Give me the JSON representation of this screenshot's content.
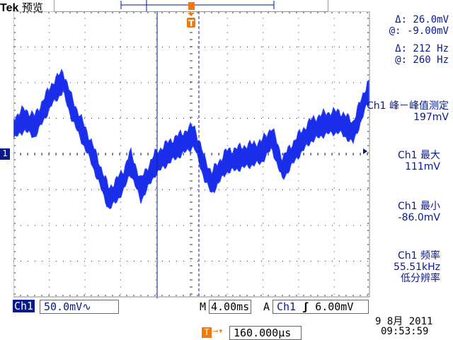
{
  "header": {
    "brand": "Tek",
    "mode": "预览"
  },
  "cursors": {
    "delta_v": "Δ:  26.0mV",
    "at_v": "@: -9.00mV",
    "delta_f": "Δ:   212 Hz",
    "at_f": "@:   260 Hz"
  },
  "measurements": [
    {
      "label": "Ch1 峰－峰值测定",
      "value": "197mV"
    },
    {
      "label": "Ch1 最大",
      "value": "111mV"
    },
    {
      "label": "Ch1 最小",
      "value": "-86.0mV"
    },
    {
      "label": "Ch1 频率",
      "value": "55.51kHz",
      "note": "低分辨率"
    }
  ],
  "channel": {
    "name": "Ch1",
    "scale": "50.0mV",
    "coupling_icon": "bandwidth-limit-icon",
    "marker": "1"
  },
  "timebase": {
    "prefix": "M",
    "value": "4.00ms"
  },
  "trigger": {
    "prefix": "A",
    "source": "Ch1",
    "slope_icon": "rising-edge-icon",
    "level": "6.00mV",
    "marker": "T",
    "position": "160.000µs"
  },
  "datetime": {
    "date": "9 8月  2011",
    "time": "09:53:59"
  },
  "colors": {
    "trace": "#1a2eea",
    "text": "#0a1a8c",
    "trigger": "#f07810"
  }
}
